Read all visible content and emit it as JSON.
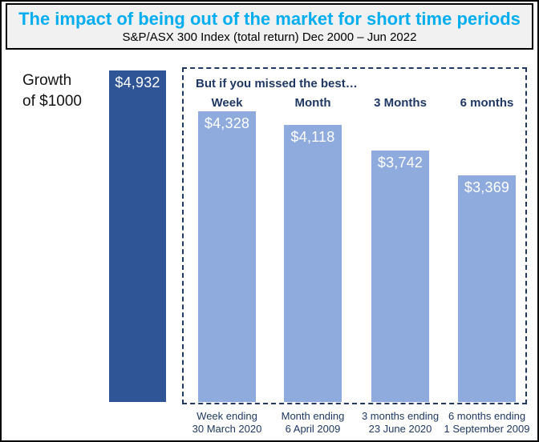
{
  "chart_data": {
    "type": "bar",
    "title": "The impact of being out of the market for short time periods",
    "subtitle": "S&P/ASX 300 Index (total return) Dec 2000 – Jun 2022",
    "annotation": "But if you missed the best…",
    "baseline": {
      "label_line1": "Growth",
      "label_line2": "of $1000",
      "value": 4932,
      "value_label": "$4,932"
    },
    "categories": [
      "Week",
      "Month",
      "3 Months",
      "6 months"
    ],
    "values": [
      4328,
      4118,
      3742,
      3369
    ],
    "value_labels": [
      "$4,328",
      "$4,118",
      "$3,742",
      "$3,369"
    ],
    "footnotes": [
      {
        "line1": "Week ending",
        "line2": "30 March 2020"
      },
      {
        "line1": "Month ending",
        "line2": "6 April 2009"
      },
      {
        "line1": "3 months ending",
        "line2": "23 June 2020"
      },
      {
        "line1": "6 months ending",
        "line2": "1 September 2009"
      }
    ],
    "ylim": [
      0,
      4932
    ],
    "grid": false,
    "legend": false,
    "colors": {
      "baseline_bar": "#2F5597",
      "missed_bar": "#8FAADC",
      "title_accent": "#00AEEF",
      "navy_text": "#1F3864"
    }
  }
}
